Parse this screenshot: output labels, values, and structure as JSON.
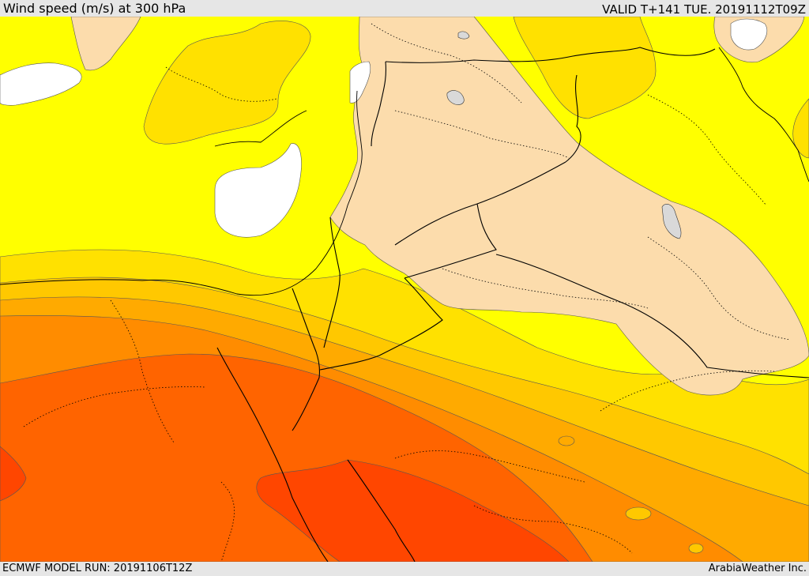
{
  "header": {
    "title": "Wind speed (m/s) at 300 hPa",
    "valid_time": "VALID T+141 TUE. 20191112T09Z"
  },
  "footer": {
    "model_run": "ECMWF MODEL RUN: 20191106T12Z",
    "credit": "ArabiaWeather Inc."
  },
  "map": {
    "field": "wind speed at 300 hPa",
    "colors": {
      "calm_white": "#ffffff",
      "yellow": "#ffff00",
      "gold": "#ffe100",
      "amber": "#ffc800",
      "light_orange": "#ffaa00",
      "orange": "#ff8c00",
      "dark_orange": "#ff6400",
      "red_orange": "#ff4600",
      "land_mask": "#fcdcac",
      "lake": "#d9d9d9",
      "border": "#000000"
    }
  }
}
